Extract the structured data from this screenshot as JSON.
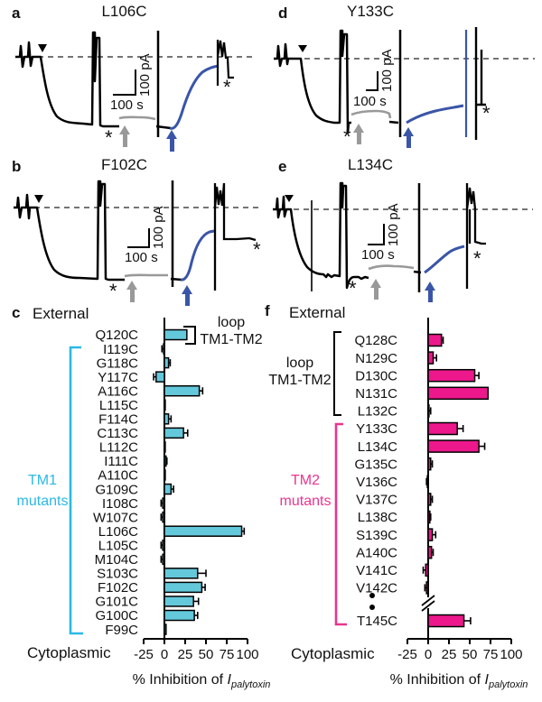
{
  "panels": {
    "a": {
      "letter": "a",
      "title": "L106C",
      "time_scale": "100 s",
      "current_scale": "100 pA",
      "asterisks": [
        "*",
        "*"
      ]
    },
    "b": {
      "letter": "b",
      "title": "F102C",
      "time_scale": "100 s",
      "current_scale": "100 pA",
      "asterisks": [
        "*",
        "*"
      ]
    },
    "d": {
      "letter": "d",
      "title": "Y133C",
      "time_scale": "100 s",
      "current_scale": "100 pA",
      "asterisks": [
        "*",
        "*"
      ]
    },
    "e": {
      "letter": "e",
      "title": "L134C",
      "time_scale": "100 s",
      "current_scale": "100 pA",
      "asterisks": [
        "*",
        "*"
      ]
    }
  },
  "markers": {
    "application_marker": "arrowhead-down-icon",
    "gray_wash_marker": "gray-up-arrow-icon",
    "blue_wash_marker": "blue-up-arrow-icon"
  },
  "colors": {
    "trace_blue": "#3A55A8",
    "trace_gray": "#999999",
    "tm1_bar_fill": "#64C8DB",
    "tm2_bar_fill": "#EC188C",
    "tm1_accent": "#2BB9E5",
    "tm2_accent": "#E8368F"
  },
  "chart_data": [
    {
      "type": "bar",
      "orientation": "horizontal",
      "panel_letter": "c",
      "external_label": "External",
      "cytoplasmic_label": "Cytoplasmic",
      "loop_label_line1": "loop",
      "loop_label_line2": "TM1-TM2",
      "group_label_line1": "TM1",
      "group_label_line2": "mutants",
      "xlabel_prefix": "% Inhibition of ",
      "xlabel_symbol": "I",
      "xlabel_sub": "palytoxin",
      "xlim": [
        -25,
        100
      ],
      "xticks": [
        -25,
        0,
        25,
        50,
        75,
        100
      ],
      "bar_color": "#64C8DB",
      "accent_color": "#2BB9E5",
      "categories": [
        "Q120C",
        "I119C",
        "G118C",
        "Y117C",
        "A116C",
        "L115C",
        "F114C",
        "C113C",
        "L112C",
        "I111C",
        "A110C",
        "G109C",
        "I108C",
        "W107C",
        "L106C",
        "L105C",
        "M104C",
        "S103C",
        "F102C",
        "G101C",
        "G100C",
        "F99C"
      ],
      "values": [
        27,
        -1,
        5,
        -10,
        42,
        1,
        5,
        23,
        1,
        2,
        1,
        8,
        -2,
        -2,
        93,
        -2,
        -2,
        40,
        45,
        35,
        36,
        2
      ],
      "errors": [
        0,
        2,
        2,
        3,
        4,
        0,
        3,
        5,
        0,
        1,
        0,
        3,
        2,
        2,
        3,
        2,
        2,
        10,
        4,
        6,
        4,
        0
      ],
      "loop_members": [
        "Q120C"
      ],
      "group_members_range": [
        "I119C",
        "F99C"
      ]
    },
    {
      "type": "bar",
      "orientation": "horizontal",
      "panel_letter": "f",
      "external_label": "External",
      "cytoplasmic_label": "Cytoplasmic",
      "loop_label_line1": "loop",
      "loop_label_line2": "TM1-TM2",
      "group_label_line1": "TM2",
      "group_label_line2": "mutants",
      "xlabel_prefix": "% Inhibition of ",
      "xlabel_symbol": "I",
      "xlabel_sub": "palytoxin",
      "xlim": [
        -25,
        100
      ],
      "xticks": [
        -25,
        0,
        25,
        50,
        75,
        100
      ],
      "bar_color": "#EC188C",
      "accent_color": "#E8368F",
      "categories": [
        "Q128C",
        "N129C",
        "D130C",
        "N131C",
        "L132C",
        "Y133C",
        "L134C",
        "G135C",
        "V136C",
        "V137C",
        "L138C",
        "S139C",
        "A140C",
        "V141C",
        "V142C",
        "T145C"
      ],
      "values": [
        16,
        6,
        56,
        72,
        1,
        35,
        61,
        3,
        -1,
        3,
        2,
        5,
        4,
        -3,
        -2,
        43
      ],
      "errors": [
        2,
        4,
        5,
        0,
        2,
        7,
        7,
        2,
        1,
        2,
        1,
        4,
        2,
        3,
        2,
        8
      ],
      "loop_members_range": [
        "Q128C",
        "L132C"
      ],
      "group_members_range": [
        "Y133C",
        "T145C"
      ],
      "axis_break": true,
      "ellipsis_between": [
        "V142C",
        "T145C"
      ]
    }
  ]
}
